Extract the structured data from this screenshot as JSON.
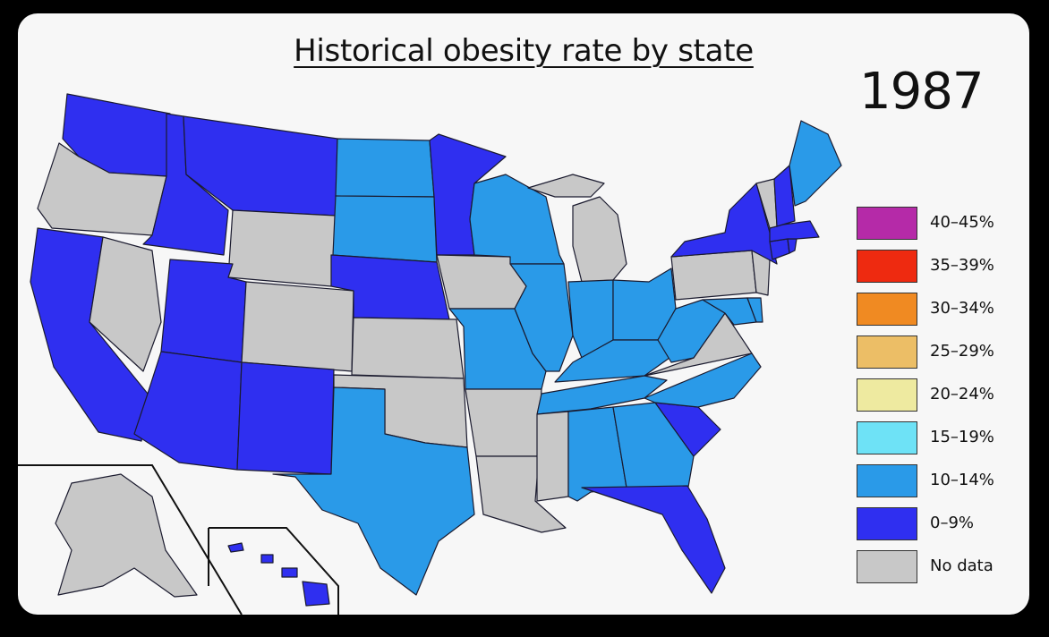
{
  "title": "Historical obesity rate by state",
  "year": "1987",
  "colors": {
    "no_data": "#c8c8c8",
    "low": "#2f2ff0",
    "mid": "#2a9ae8"
  },
  "legend": [
    {
      "label": "40–45%",
      "color": "#b52aa8"
    },
    {
      "label": "35–39%",
      "color": "#ee2a10"
    },
    {
      "label": "30–34%",
      "color": "#f08a22"
    },
    {
      "label": "25–29%",
      "color": "#ecbe66"
    },
    {
      "label": "20–24%",
      "color": "#eeeaa0"
    },
    {
      "label": "15–19%",
      "color": "#6ee2f6"
    },
    {
      "label": "10–14%",
      "color": "#2a9ae8"
    },
    {
      "label": "0–9%",
      "color": "#2f2ff0"
    },
    {
      "label": "No data",
      "color": "#c8c8c8"
    }
  ],
  "states": {
    "WA": "0–9%",
    "OR": "No data",
    "CA": "0–9%",
    "NV": "No data",
    "ID": "0–9%",
    "MT": "0–9%",
    "WY": "No data",
    "UT": "0–9%",
    "AZ": "0–9%",
    "CO": "No data",
    "NM": "0–9%",
    "ND": "10–14%",
    "SD": "10–14%",
    "NE": "0–9%",
    "KS": "No data",
    "OK": "No data",
    "TX": "10–14%",
    "MN": "0–9%",
    "IA": "No data",
    "MO": "10–14%",
    "AR": "No data",
    "LA": "No data",
    "WI": "10–14%",
    "IL": "10–14%",
    "MI": "No data",
    "IN": "10–14%",
    "OH": "10–14%",
    "KY": "10–14%",
    "TN": "10–14%",
    "MS": "No data",
    "AL": "10–14%",
    "GA": "10–14%",
    "FL": "0–9%",
    "SC": "0–9%",
    "NC": "10–14%",
    "VA": "No data",
    "WV": "10–14%",
    "MD": "10–14%",
    "DE": "10–14%",
    "PA": "No data",
    "NJ": "No data",
    "NY": "0–9%",
    "CT": "0–9%",
    "RI": "0–9%",
    "MA": "0–9%",
    "VT": "No data",
    "NH": "0–9%",
    "ME": "10–14%",
    "AK": "No data",
    "HI": "0–9%"
  }
}
